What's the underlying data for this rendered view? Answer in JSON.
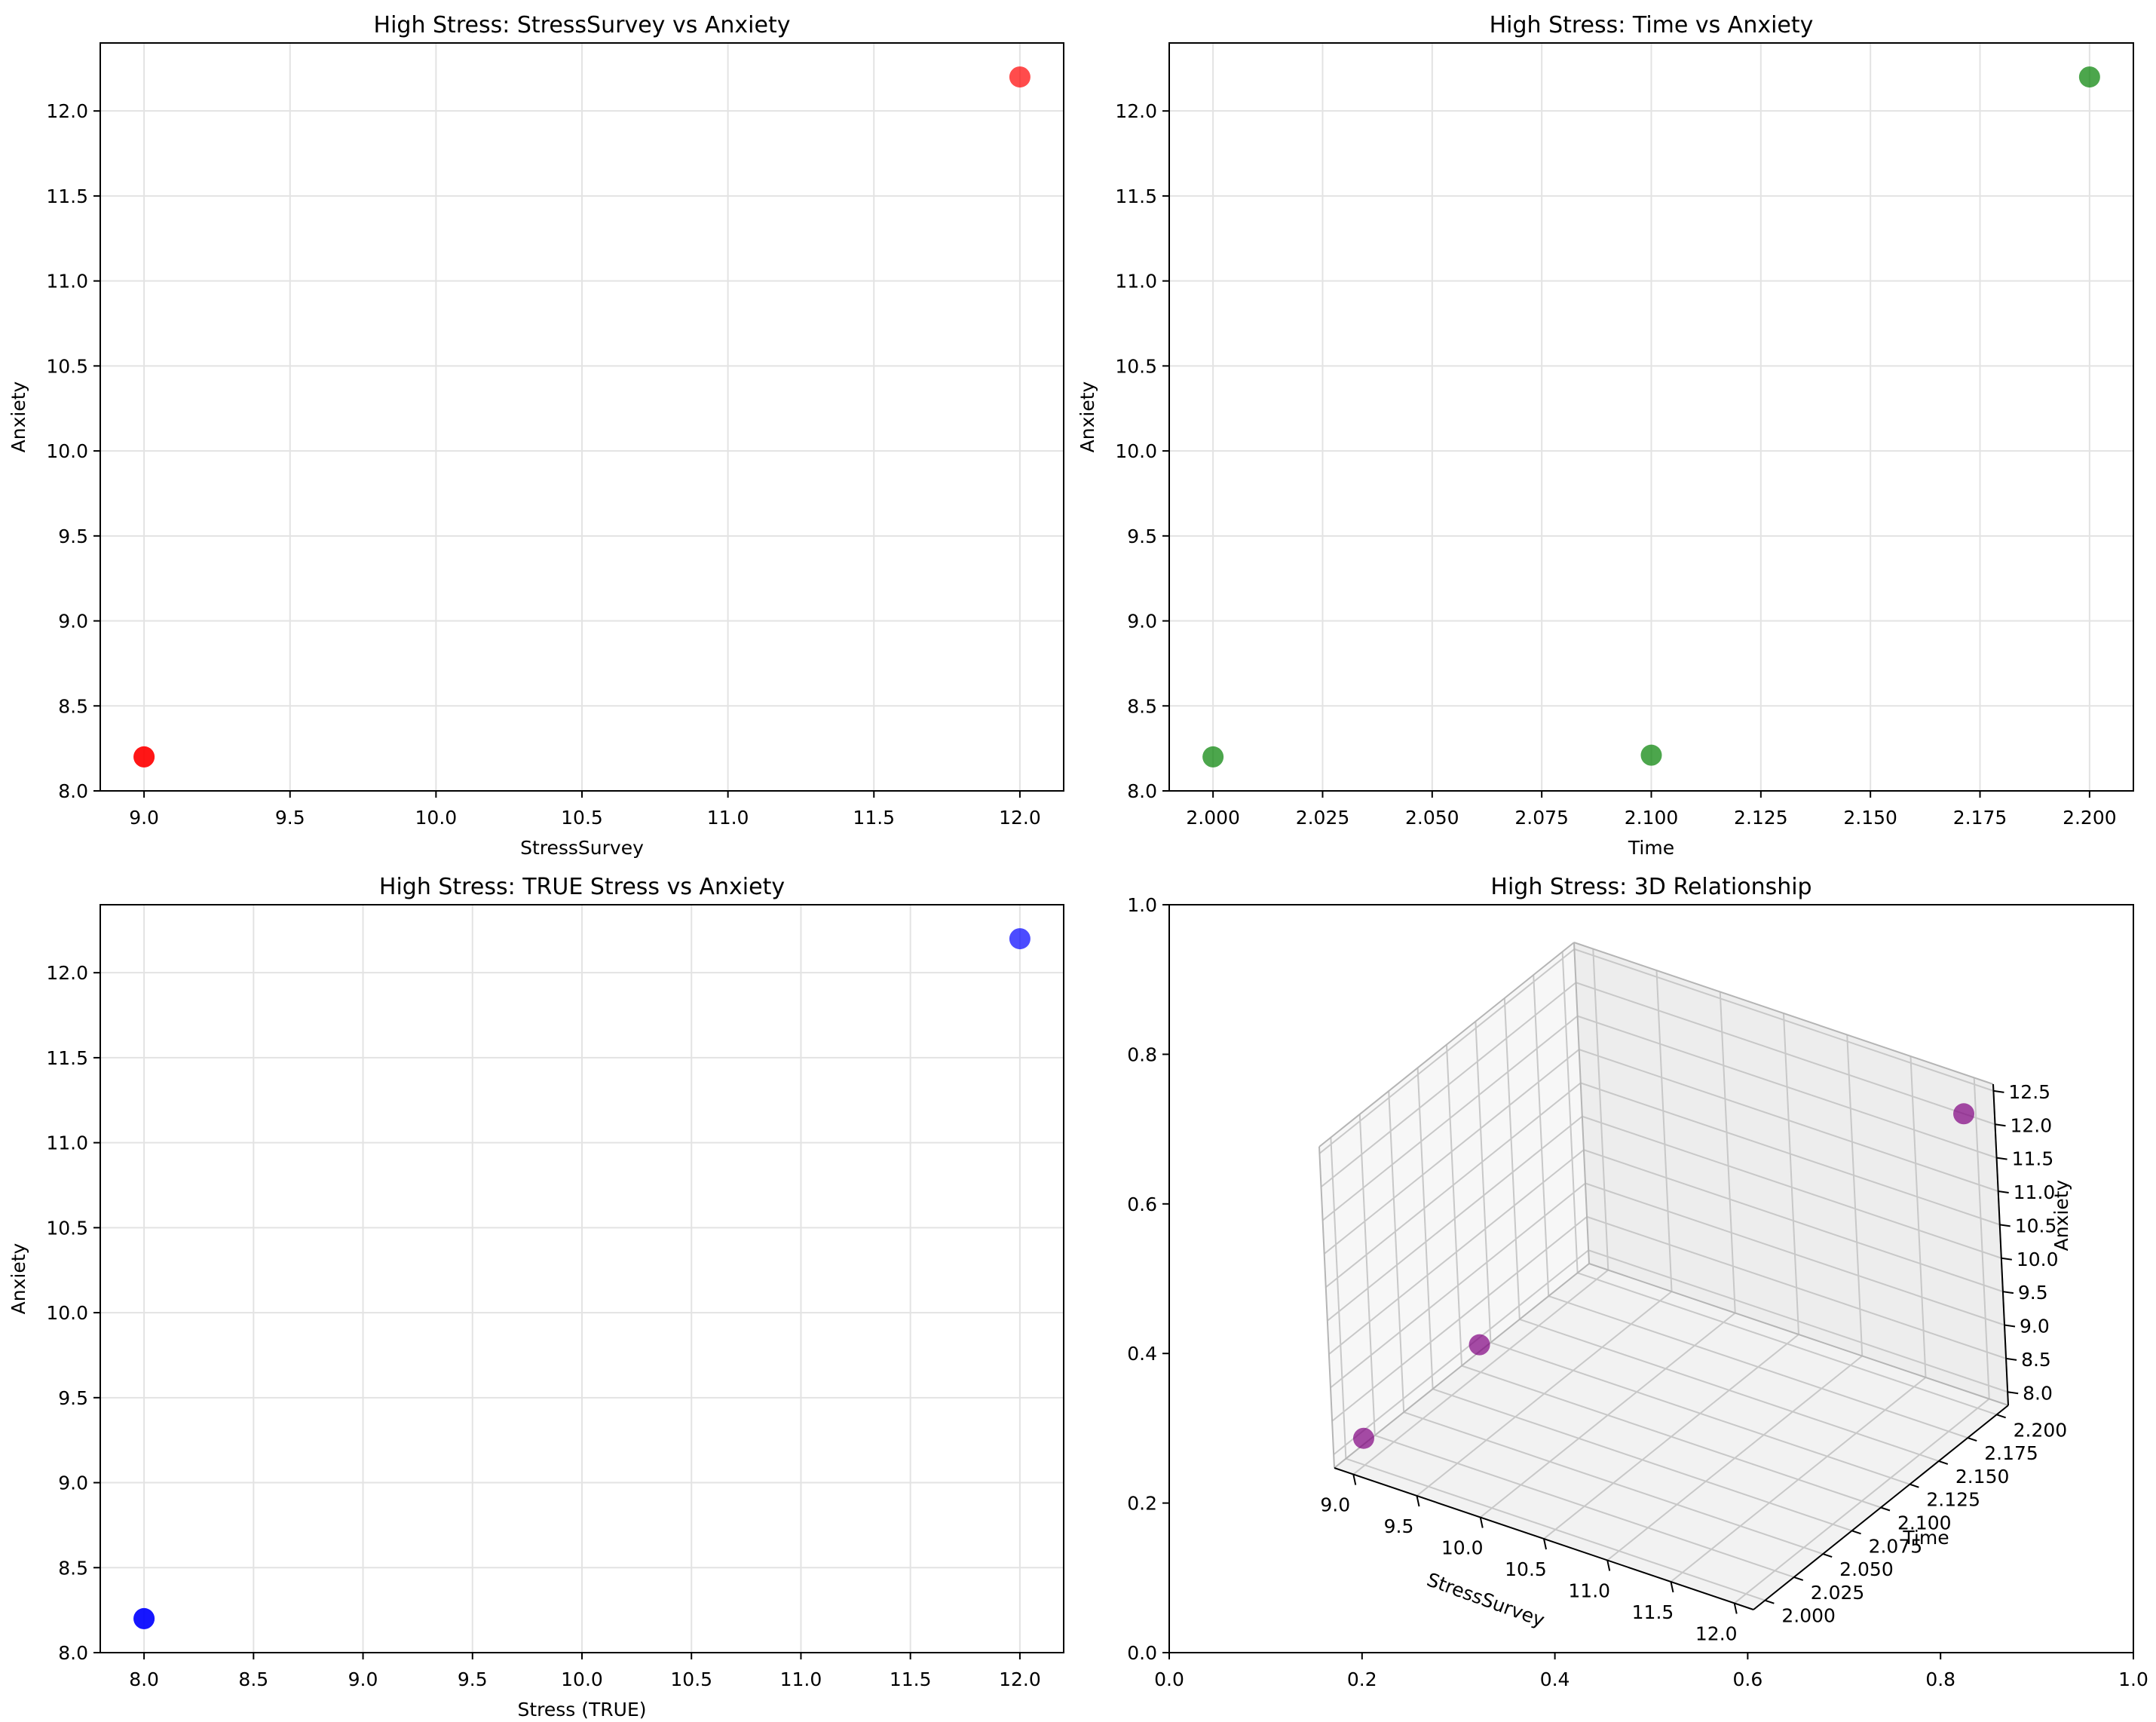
{
  "chart_data": [
    {
      "type": "scatter",
      "title": "High Stress: StressSurvey vs Anxiety",
      "xlabel": "StressSurvey",
      "ylabel": "Anxiety",
      "xlim": [
        8.85,
        12.15
      ],
      "ylim": [
        8.0,
        12.4
      ],
      "xticks": [
        9.0,
        9.5,
        10.0,
        10.5,
        11.0,
        11.5,
        12.0
      ],
      "yticks": [
        8.0,
        8.5,
        9.0,
        9.5,
        10.0,
        10.5,
        11.0,
        11.5,
        12.0
      ],
      "grid": true,
      "color": "#ff0000",
      "series": [
        {
          "x": [
            9.0,
            9.0,
            12.0
          ],
          "y": [
            8.2,
            8.2,
            12.2
          ]
        }
      ]
    },
    {
      "type": "scatter",
      "title": "High Stress: Time vs Anxiety",
      "xlabel": "Time",
      "ylabel": "Anxiety",
      "xlim": [
        1.99,
        2.21
      ],
      "ylim": [
        8.0,
        12.4
      ],
      "xticks": [
        2.0,
        2.025,
        2.05,
        2.075,
        2.1,
        2.125,
        2.15,
        2.175,
        2.2
      ],
      "yticks": [
        8.0,
        8.5,
        9.0,
        9.5,
        10.0,
        10.5,
        11.0,
        11.5,
        12.0
      ],
      "grid": true,
      "color": "#008000",
      "series": [
        {
          "x": [
            2.0,
            2.1,
            2.2
          ],
          "y": [
            8.2,
            8.21,
            12.2
          ]
        }
      ]
    },
    {
      "type": "scatter",
      "title": "High Stress: TRUE Stress vs Anxiety",
      "xlabel": "Stress (TRUE)",
      "ylabel": "Anxiety",
      "xlim": [
        7.8,
        12.2
      ],
      "ylim": [
        8.0,
        12.4
      ],
      "xticks": [
        8.0,
        8.5,
        9.0,
        9.5,
        10.0,
        10.5,
        11.0,
        11.5,
        12.0
      ],
      "yticks": [
        8.0,
        8.5,
        9.0,
        9.5,
        10.0,
        10.5,
        11.0,
        11.5,
        12.0
      ],
      "grid": true,
      "color": "#0000ff",
      "series": [
        {
          "x": [
            8.0,
            8.0,
            12.0
          ],
          "y": [
            8.2,
            8.2,
            12.2
          ]
        }
      ]
    },
    {
      "type": "scatter3d",
      "title": "High Stress: 3D Relationship",
      "xlabel": "StressSurvey",
      "ylabel": "Time",
      "zlabel": "Anxiety",
      "xticks": [
        9.0,
        9.5,
        10.0,
        10.5,
        11.0,
        11.5,
        12.0
      ],
      "yticks": [
        2.0,
        2.025,
        2.05,
        2.075,
        2.1,
        2.125,
        2.15,
        2.175,
        2.2
      ],
      "zticks": [
        8.0,
        8.5,
        9.0,
        9.5,
        10.0,
        10.5,
        11.0,
        11.5,
        12.0,
        12.5
      ],
      "outer_xticks": [
        0.0,
        0.2,
        0.4,
        0.6,
        0.8,
        1.0
      ],
      "outer_yticks": [
        0.0,
        0.2,
        0.4,
        0.6,
        0.8,
        1.0
      ],
      "color": "#800080",
      "series": [
        {
          "x": [
            9.0,
            9.0,
            12.0
          ],
          "y": [
            2.0,
            2.1,
            2.2
          ],
          "z": [
            8.2,
            8.21,
            12.2
          ]
        }
      ]
    }
  ]
}
